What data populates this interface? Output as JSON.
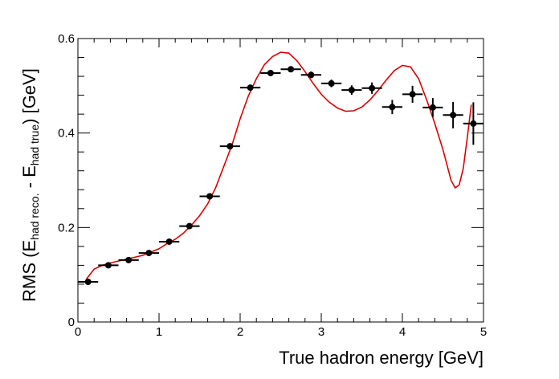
{
  "chart_data": {
    "type": "scatter",
    "title": "",
    "xlabel": "True hadron energy [GeV]",
    "ylabel": {
      "pre": "RMS (E",
      "sub1": "had reco.",
      "mid": " - E",
      "sub2": "had true",
      "post": ") [GeV]"
    },
    "xlim": [
      0,
      5
    ],
    "ylim": [
      0,
      0.6
    ],
    "x_ticks": [
      "0",
      "1",
      "2",
      "3",
      "4",
      "5"
    ],
    "y_ticks": [
      "0",
      "0.2",
      "0.4",
      "0.6"
    ],
    "grid": false,
    "legend": "none",
    "colors": {
      "points": "#000000",
      "curve": "#dd0000"
    },
    "series": [
      {
        "kind": "points-with-errors",
        "x": [
          0.125,
          0.375,
          0.625,
          0.875,
          1.125,
          1.375,
          1.625,
          1.875,
          2.125,
          2.375,
          2.625,
          2.875,
          3.125,
          3.375,
          3.625,
          3.875,
          4.125,
          4.375,
          4.625,
          4.875
        ],
        "x_err": 0.125,
        "y": [
          0.085,
          0.12,
          0.131,
          0.146,
          0.17,
          0.203,
          0.266,
          0.372,
          0.496,
          0.527,
          0.535,
          0.523,
          0.505,
          0.491,
          0.495,
          0.455,
          0.482,
          0.454,
          0.438,
          0.42
        ],
        "y_err": [
          0.003,
          0.003,
          0.003,
          0.003,
          0.003,
          0.004,
          0.004,
          0.005,
          0.006,
          0.006,
          0.006,
          0.007,
          0.008,
          0.01,
          0.012,
          0.015,
          0.018,
          0.02,
          0.028,
          0.045
        ]
      },
      {
        "kind": "curve",
        "x": [
          0.1,
          0.2,
          0.3,
          0.4,
          0.5,
          0.6,
          0.7,
          0.8,
          0.9,
          1.0,
          1.1,
          1.2,
          1.3,
          1.4,
          1.5,
          1.6,
          1.7,
          1.8,
          1.9,
          2.0,
          2.1,
          2.2,
          2.3,
          2.4,
          2.5,
          2.6,
          2.7,
          2.8,
          2.9,
          3.0,
          3.1,
          3.2,
          3.3,
          3.4,
          3.5,
          3.6,
          3.7,
          3.8,
          3.9,
          4.0,
          4.1,
          4.2,
          4.3,
          4.4,
          4.5,
          4.6,
          4.65,
          4.7,
          4.75,
          4.8,
          4.85
        ],
        "y": [
          0.09,
          0.112,
          0.12,
          0.125,
          0.129,
          0.133,
          0.137,
          0.141,
          0.148,
          0.155,
          0.166,
          0.175,
          0.188,
          0.205,
          0.225,
          0.25,
          0.285,
          0.33,
          0.375,
          0.43,
          0.478,
          0.515,
          0.545,
          0.562,
          0.571,
          0.569,
          0.553,
          0.53,
          0.505,
          0.482,
          0.465,
          0.453,
          0.446,
          0.447,
          0.455,
          0.47,
          0.49,
          0.512,
          0.532,
          0.543,
          0.54,
          0.515,
          0.47,
          0.42,
          0.365,
          0.3,
          0.284,
          0.29,
          0.325,
          0.39,
          0.46
        ]
      }
    ]
  }
}
